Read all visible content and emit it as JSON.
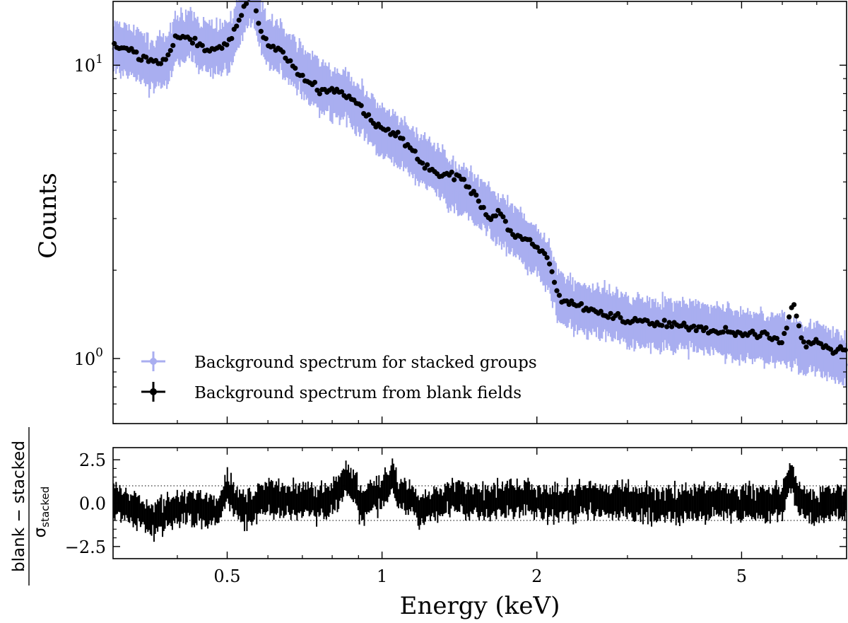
{
  "chart_data": [
    {
      "type": "scatter",
      "panel": "main",
      "yscale": "log",
      "xscale": "log",
      "xlim": [
        0.3,
        8.0
      ],
      "ylim": [
        0.6,
        16.5
      ],
      "ylabel": "Counts",
      "yticks": [
        {
          "value": 1.0,
          "label": "10",
          "exp": "0"
        },
        {
          "value": 10.0,
          "label": "10",
          "exp": "1"
        }
      ],
      "legend": {
        "placement": "lower-left",
        "entries": [
          "Background spectrum for stacked groups",
          "Background spectrum from blank fields"
        ]
      },
      "series": [
        {
          "name": "Background spectrum for stacked groups",
          "color": "#a9aef0",
          "x": [
            0.3,
            0.32,
            0.34,
            0.36,
            0.38,
            0.4,
            0.42,
            0.44,
            0.46,
            0.48,
            0.5,
            0.52,
            0.54,
            0.56,
            0.58,
            0.6,
            0.63,
            0.66,
            0.7,
            0.75,
            0.8,
            0.85,
            0.9,
            0.95,
            1.0,
            1.1,
            1.2,
            1.3,
            1.4,
            1.5,
            1.6,
            1.7,
            1.8,
            1.9,
            2.0,
            2.1,
            2.2,
            2.4,
            2.6,
            2.8,
            3.0,
            3.5,
            4.0,
            4.5,
            5.0,
            5.5,
            6.0,
            6.3,
            6.6,
            7.0,
            7.5,
            8.0
          ],
          "y": [
            11.5,
            11.3,
            10.6,
            10.0,
            10.3,
            12.3,
            12.6,
            11.8,
            11.4,
            11.3,
            11.6,
            13.0,
            15.5,
            17.2,
            13.8,
            12.0,
            11.5,
            10.5,
            9.5,
            8.6,
            8.0,
            7.8,
            7.2,
            6.5,
            5.9,
            5.3,
            4.7,
            4.3,
            3.8,
            3.55,
            3.3,
            2.9,
            2.7,
            2.5,
            2.35,
            2.1,
            1.62,
            1.5,
            1.45,
            1.42,
            1.35,
            1.3,
            1.28,
            1.25,
            1.2,
            1.18,
            1.15,
            1.14,
            1.1,
            1.08,
            1.02,
            0.98
          ]
        },
        {
          "name": "Background spectrum from blank fields",
          "color": "#000000",
          "x": [
            0.3,
            0.32,
            0.34,
            0.36,
            0.38,
            0.4,
            0.42,
            0.44,
            0.46,
            0.48,
            0.5,
            0.52,
            0.54,
            0.56,
            0.58,
            0.6,
            0.63,
            0.66,
            0.7,
            0.75,
            0.8,
            0.85,
            0.9,
            0.95,
            1.0,
            1.1,
            1.2,
            1.3,
            1.4,
            1.5,
            1.6,
            1.7,
            1.8,
            1.9,
            2.0,
            2.1,
            2.2,
            2.4,
            2.6,
            2.8,
            3.0,
            3.5,
            4.0,
            4.5,
            5.0,
            5.5,
            6.0,
            6.3,
            6.6,
            7.0,
            7.5,
            8.0
          ],
          "y": [
            11.6,
            11.4,
            10.7,
            10.1,
            10.4,
            12.6,
            12.5,
            11.6,
            11.3,
            11.4,
            11.8,
            13.4,
            16.0,
            17.6,
            13.3,
            11.6,
            11.3,
            10.3,
            9.2,
            8.3,
            8.2,
            7.9,
            7.3,
            6.6,
            6.1,
            5.6,
            4.6,
            4.2,
            4.2,
            3.7,
            3.0,
            3.1,
            2.6,
            2.55,
            2.4,
            2.2,
            1.62,
            1.52,
            1.45,
            1.4,
            1.35,
            1.32,
            1.27,
            1.24,
            1.22,
            1.2,
            1.14,
            1.55,
            1.12,
            1.15,
            1.06,
            1.08
          ]
        }
      ]
    },
    {
      "type": "scatter",
      "panel": "residual",
      "xscale": "log",
      "xlim": [
        0.3,
        8.0
      ],
      "ylim": [
        -3.2,
        3.2
      ],
      "xlabel": "Energy (keV)",
      "ylabel_main": "blank − stacked",
      "ylabel_denominator": "σ",
      "ylabel_subscript": "stacked",
      "yticks": [
        {
          "value": 2.5,
          "label": "2.5"
        },
        {
          "value": 0.0,
          "label": "0.0"
        },
        {
          "value": -2.5,
          "label": "−2.5"
        }
      ],
      "xticks": [
        {
          "value": 0.5,
          "label": "0.5"
        },
        {
          "value": 1.0,
          "label": "1"
        },
        {
          "value": 2.0,
          "label": "2"
        },
        {
          "value": 5.0,
          "label": "5"
        }
      ],
      "reference_lines": [
        -1,
        1
      ],
      "series": [
        {
          "name": "residuals",
          "color": "#000000",
          "x": [
            0.3,
            0.33,
            0.36,
            0.4,
            0.44,
            0.48,
            0.5,
            0.52,
            0.55,
            0.58,
            0.62,
            0.66,
            0.7,
            0.75,
            0.8,
            0.85,
            0.88,
            0.92,
            0.95,
            1.0,
            1.05,
            1.08,
            1.12,
            1.2,
            1.3,
            1.4,
            1.5,
            1.7,
            1.9,
            2.0,
            2.2,
            2.5,
            3.0,
            3.5,
            4.0,
            4.5,
            5.0,
            5.5,
            6.0,
            6.2,
            6.5,
            7.0,
            7.5,
            8.0
          ],
          "y": [
            0.2,
            -0.3,
            -0.9,
            -0.4,
            -0.2,
            -0.5,
            0.9,
            0.1,
            -0.5,
            0.3,
            0.4,
            0.1,
            0.2,
            0.0,
            0.3,
            1.2,
            0.8,
            -0.2,
            0.3,
            0.6,
            1.6,
            0.4,
            0.3,
            -0.4,
            0.2,
            0.4,
            0.1,
            0.2,
            0.3,
            0.1,
            -0.1,
            0.2,
            0.1,
            -0.1,
            0.0,
            0.1,
            -0.1,
            0.0,
            0.1,
            1.6,
            0.2,
            -0.3,
            0.0,
            0.1
          ]
        }
      ]
    }
  ]
}
